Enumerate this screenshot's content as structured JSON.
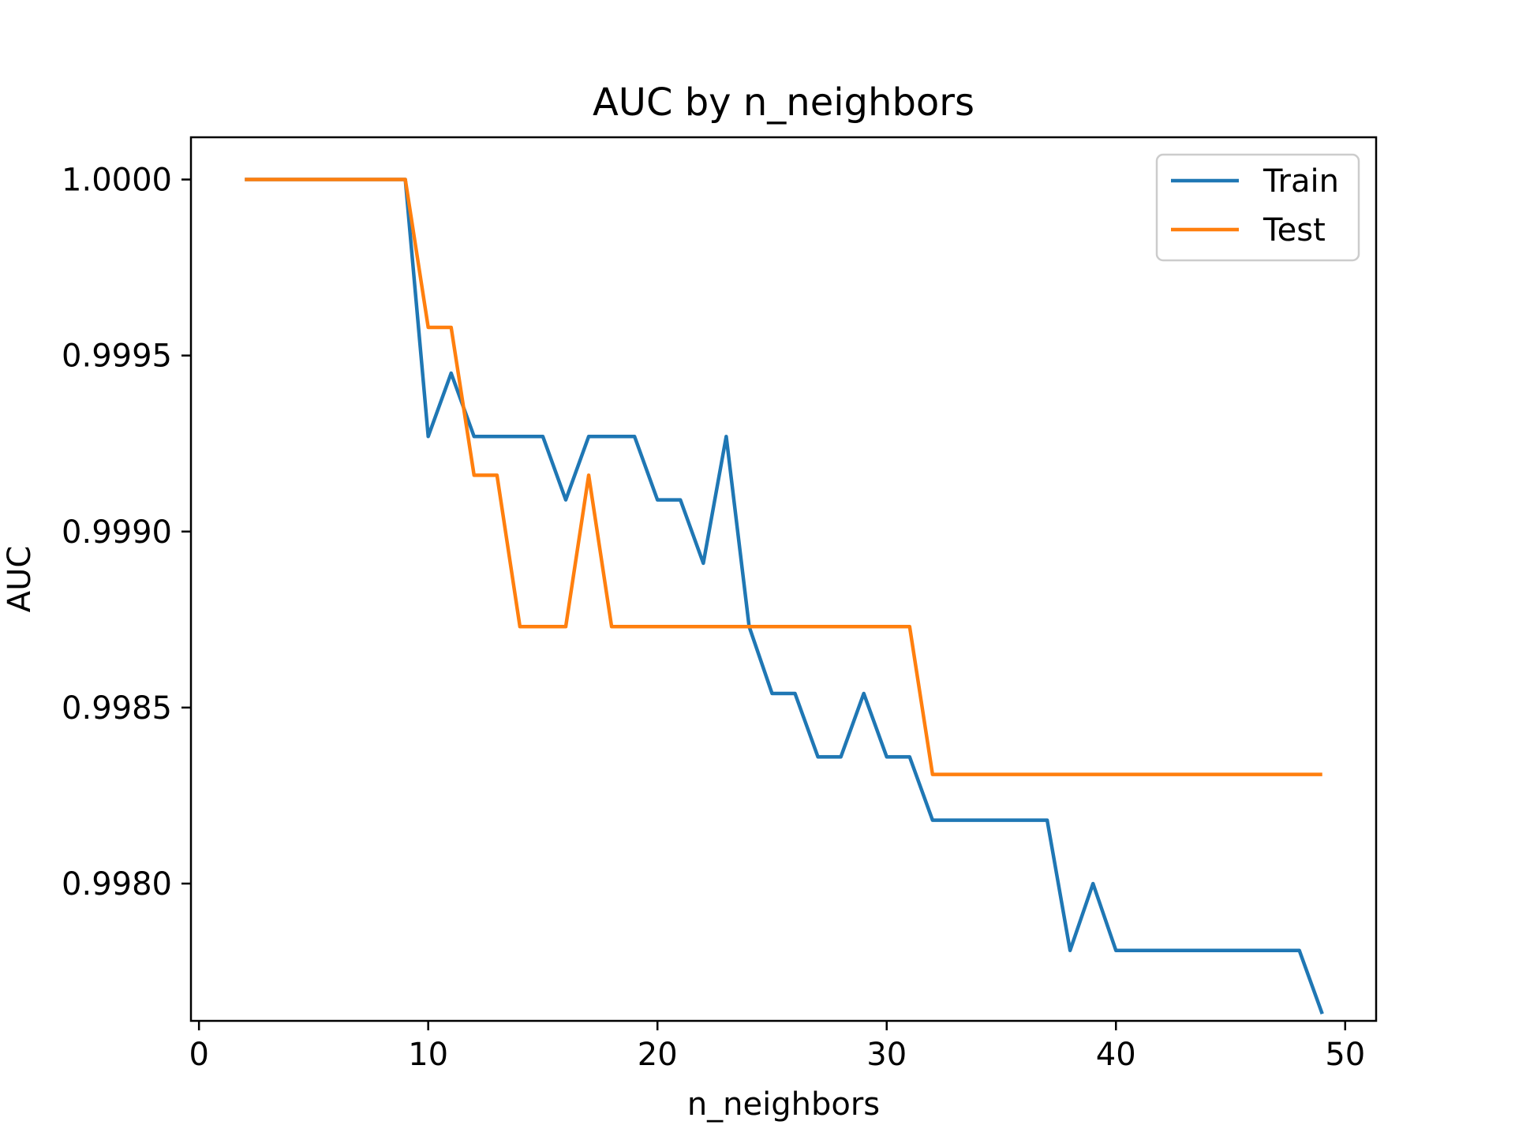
{
  "chart_data": {
    "type": "line",
    "title": "AUC by n_neighbors",
    "xlabel": "n_neighbors",
    "ylabel": "AUC",
    "xlim": [
      -0.35,
      51.35
    ],
    "ylim": [
      0.99761,
      1.00012
    ],
    "xticks": [
      0,
      10,
      20,
      30,
      40,
      50
    ],
    "xtick_labels": [
      "0",
      "10",
      "20",
      "30",
      "40",
      "50"
    ],
    "yticks": [
      0.998,
      0.9985,
      0.999,
      0.9995,
      1.0
    ],
    "ytick_labels": [
      "0.9980",
      "0.9985",
      "0.9990",
      "0.9995",
      "1.0000"
    ],
    "grid": false,
    "legend_position": "top-right",
    "x": [
      2,
      3,
      4,
      5,
      6,
      7,
      8,
      9,
      10,
      11,
      12,
      13,
      14,
      15,
      16,
      17,
      18,
      19,
      20,
      21,
      22,
      23,
      24,
      25,
      26,
      27,
      28,
      29,
      30,
      31,
      32,
      33,
      34,
      35,
      36,
      37,
      38,
      39,
      40,
      41,
      42,
      43,
      44,
      45,
      46,
      47,
      48,
      49
    ],
    "series": [
      {
        "name": "Train",
        "color": "#1f77b4",
        "values": [
          1.0,
          1.0,
          1.0,
          1.0,
          1.0,
          1.0,
          1.0,
          1.0,
          0.99927,
          0.99945,
          0.99927,
          0.99927,
          0.99927,
          0.99927,
          0.99909,
          0.99927,
          0.99927,
          0.99927,
          0.99909,
          0.99909,
          0.99891,
          0.99927,
          0.99873,
          0.99854,
          0.99854,
          0.99836,
          0.99836,
          0.99854,
          0.99836,
          0.99836,
          0.99818,
          0.99818,
          0.99818,
          0.99818,
          0.99818,
          0.99818,
          0.99781,
          0.998,
          0.99781,
          0.99781,
          0.99781,
          0.99781,
          0.99781,
          0.99781,
          0.99781,
          0.99781,
          0.99781,
          0.99763
        ]
      },
      {
        "name": "Test",
        "color": "#ff7f0e",
        "values": [
          1.0,
          1.0,
          1.0,
          1.0,
          1.0,
          1.0,
          1.0,
          1.0,
          0.99958,
          0.99958,
          0.99916,
          0.99916,
          0.99873,
          0.99873,
          0.99873,
          0.99916,
          0.99873,
          0.99873,
          0.99873,
          0.99873,
          0.99873,
          0.99873,
          0.99873,
          0.99873,
          0.99873,
          0.99873,
          0.99873,
          0.99873,
          0.99873,
          0.99873,
          0.99831,
          0.99831,
          0.99831,
          0.99831,
          0.99831,
          0.99831,
          0.99831,
          0.99831,
          0.99831,
          0.99831,
          0.99831,
          0.99831,
          0.99831,
          0.99831,
          0.99831,
          0.99831,
          0.99831,
          0.99831
        ]
      }
    ]
  }
}
